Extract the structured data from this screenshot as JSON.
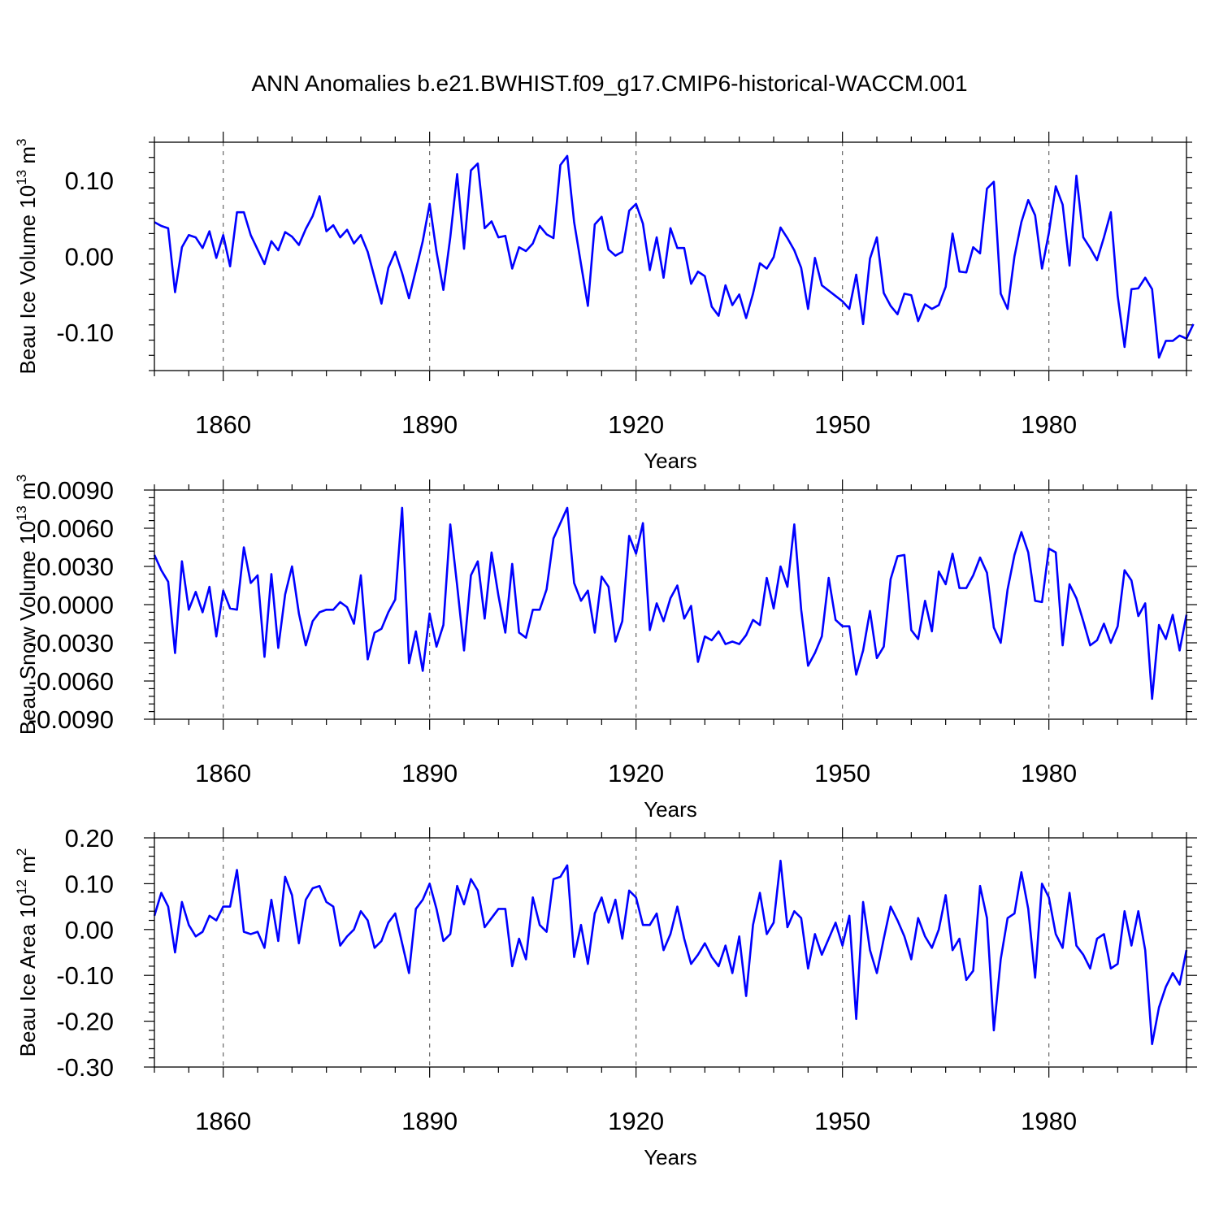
{
  "figure": {
    "title": "ANN Anomalies b.e21.BWHIST.f09_g17.CMIP6-historical-WACCM.001"
  },
  "chart_data": [
    {
      "type": "line",
      "name": "beau-ice-volume",
      "ylabel_main": "Beau Ice Volume 10",
      "ylabel_exp": "13",
      "ylabel_unit": " m",
      "ylabel_unit_exp": "3",
      "xlabel": "Years",
      "xlim": [
        1850,
        2000
      ],
      "ylim": [
        -0.15,
        0.15
      ],
      "xticks": [
        1860,
        1890,
        1920,
        1950,
        1980
      ],
      "xtick_labels": [
        "1860",
        "1890",
        "1920",
        "1950",
        "1980"
      ],
      "yticks": [
        -0.1,
        0.0,
        0.1
      ],
      "ytick_labels": [
        "-0.10",
        "0.00",
        "0.10"
      ],
      "x_start": 1850,
      "color": "#0000ff",
      "values": [
        0.045,
        0.04,
        0.037,
        -0.047,
        0.012,
        0.028,
        0.025,
        0.011,
        0.033,
        -0.002,
        0.028,
        -0.013,
        0.058,
        0.058,
        0.028,
        0.009,
        -0.01,
        0.02,
        0.008,
        0.032,
        0.026,
        0.015,
        0.036,
        0.053,
        0.079,
        0.033,
        0.041,
        0.025,
        0.035,
        0.017,
        0.028,
        0.006,
        -0.028,
        -0.062,
        -0.015,
        0.006,
        -0.022,
        -0.055,
        -0.018,
        0.02,
        0.069,
        0.006,
        -0.044,
        0.025,
        0.108,
        0.01,
        0.113,
        0.122,
        0.037,
        0.046,
        0.025,
        0.027,
        -0.016,
        0.012,
        0.007,
        0.017,
        0.04,
        0.029,
        0.024,
        0.12,
        0.132,
        0.045,
        -0.01,
        -0.065,
        0.042,
        0.052,
        0.009,
        0.001,
        0.006,
        0.06,
        0.069,
        0.043,
        -0.018,
        0.025,
        -0.028,
        0.037,
        0.011,
        0.011,
        -0.036,
        -0.02,
        -0.026,
        -0.066,
        -0.078,
        -0.038,
        -0.064,
        -0.05,
        -0.081,
        -0.049,
        -0.009,
        -0.016,
        -0.001,
        0.038,
        0.024,
        0.008,
        -0.015,
        -0.069,
        -0.002,
        -0.038,
        -0.045,
        -0.052,
        -0.059,
        -0.069,
        -0.024,
        -0.089,
        -0.003,
        0.025,
        -0.048,
        -0.065,
        -0.076,
        -0.049,
        -0.051,
        -0.085,
        -0.063,
        -0.069,
        -0.064,
        -0.04,
        0.03,
        -0.02,
        -0.021,
        0.012,
        0.004,
        0.089,
        0.098,
        -0.049,
        -0.069,
        0.0,
        0.045,
        0.074,
        0.054,
        -0.016,
        0.031,
        0.092,
        0.068,
        -0.012,
        0.106,
        0.025,
        0.011,
        -0.005,
        0.025,
        0.058,
        -0.052,
        -0.119,
        -0.043,
        -0.042,
        -0.028,
        -0.043,
        -0.133,
        -0.111,
        -0.111,
        -0.104,
        -0.108,
        -0.089
      ]
    },
    {
      "type": "line",
      "name": "beau-snow-volume",
      "ylabel_main": "Beau Snow Volume 10",
      "ylabel_exp": "13",
      "ylabel_unit": " m",
      "ylabel_unit_exp": "3",
      "xlabel": "Years",
      "xlim": [
        1850,
        2000
      ],
      "ylim": [
        -0.009,
        0.009
      ],
      "xticks": [
        1860,
        1890,
        1920,
        1950,
        1980
      ],
      "xtick_labels": [
        "1860",
        "1890",
        "1920",
        "1950",
        "1980"
      ],
      "yticks": [
        -0.009,
        -0.006,
        -0.003,
        0.0,
        0.003,
        0.006,
        0.009
      ],
      "ytick_labels": [
        "-0.0090",
        "-0.0060",
        "-0.0030",
        "0.0000",
        "0.0030",
        "0.0060",
        "0.0090"
      ],
      "x_start": 1850,
      "color": "#0000ff",
      "values": [
        0.0039,
        0.0027,
        0.0018,
        -0.0038,
        0.0034,
        -0.0004,
        0.001,
        -0.0006,
        0.0014,
        -0.0025,
        0.0011,
        -0.0003,
        -0.0004,
        0.0045,
        0.0017,
        0.0023,
        -0.0041,
        0.0024,
        -0.0034,
        0.0008,
        0.003,
        -0.0007,
        -0.0032,
        -0.0013,
        -0.0006,
        -0.0004,
        -0.0004,
        0.0002,
        -0.0002,
        -0.0015,
        0.0023,
        -0.0043,
        -0.0022,
        -0.0019,
        -0.0006,
        0.0004,
        0.0076,
        -0.0046,
        -0.0021,
        -0.0052,
        -0.0007,
        -0.0033,
        -0.0016,
        0.0063,
        0.0015,
        -0.0036,
        0.0023,
        0.0034,
        -0.0011,
        0.0041,
        0.0007,
        -0.0022,
        0.0032,
        -0.0022,
        -0.0026,
        -0.0004,
        -0.0004,
        0.0012,
        0.0052,
        0.0064,
        0.0076,
        0.0017,
        0.0003,
        0.0011,
        -0.0022,
        0.0022,
        0.0014,
        -0.0029,
        -0.0013,
        0.0054,
        0.004,
        0.0064,
        -0.002,
        0.0001,
        -0.0013,
        0.0005,
        0.0015,
        -0.0011,
        -0.0001,
        -0.0045,
        -0.0025,
        -0.0028,
        -0.0021,
        -0.0031,
        -0.0029,
        -0.0031,
        -0.0024,
        -0.0012,
        -0.0016,
        0.0021,
        -0.0003,
        0.003,
        0.0014,
        0.0063,
        -0.0004,
        -0.0048,
        -0.0038,
        -0.0025,
        0.0021,
        -0.0012,
        -0.0017,
        -0.0017,
        -0.0055,
        -0.0036,
        -0.0005,
        -0.0042,
        -0.0033,
        0.002,
        0.0038,
        0.0039,
        -0.002,
        -0.0027,
        0.0003,
        -0.0021,
        0.0026,
        0.0016,
        0.004,
        0.0013,
        0.0013,
        0.0023,
        0.0037,
        0.0025,
        -0.0018,
        -0.003,
        0.0012,
        0.0039,
        0.0057,
        0.0041,
        0.0003,
        0.0002,
        0.0044,
        0.0041,
        -0.0032,
        0.0016,
        0.0005,
        -0.0013,
        -0.0032,
        -0.0028,
        -0.0015,
        -0.003,
        -0.0017,
        0.0027,
        0.0019,
        -0.0009,
        0.0001,
        -0.0074,
        -0.0016,
        -0.0027,
        -0.0008,
        -0.0036,
        -0.0008
      ]
    },
    {
      "type": "line",
      "name": "beau-ice-area",
      "ylabel_main": "Beau Ice Area 10",
      "ylabel_exp": "12",
      "ylabel_unit": " m",
      "ylabel_unit_exp": "2",
      "xlabel": "Years",
      "xlim": [
        1850,
        2000
      ],
      "ylim": [
        -0.3,
        0.2
      ],
      "xticks": [
        1860,
        1890,
        1920,
        1950,
        1980
      ],
      "xtick_labels": [
        "1860",
        "1890",
        "1920",
        "1950",
        "1980"
      ],
      "yticks": [
        -0.3,
        -0.2,
        -0.1,
        0.0,
        0.1,
        0.2
      ],
      "ytick_labels": [
        "-0.30",
        "-0.20",
        "-0.10",
        "0.00",
        "0.10",
        "0.20"
      ],
      "x_start": 1850,
      "color": "#0000ff",
      "values": [
        0.03,
        0.08,
        0.05,
        -0.05,
        0.06,
        0.01,
        -0.015,
        -0.005,
        0.03,
        0.02,
        0.05,
        0.05,
        0.13,
        -0.005,
        -0.01,
        -0.005,
        -0.04,
        0.065,
        -0.025,
        0.115,
        0.075,
        -0.03,
        0.065,
        0.09,
        0.095,
        0.06,
        0.05,
        -0.035,
        -0.015,
        0.0,
        0.04,
        0.02,
        -0.04,
        -0.025,
        0.015,
        0.035,
        -0.03,
        -0.095,
        0.045,
        0.065,
        0.1,
        0.045,
        -0.025,
        -0.01,
        0.095,
        0.055,
        0.11,
        0.085,
        0.005,
        0.025,
        0.045,
        0.045,
        -0.08,
        -0.02,
        -0.065,
        0.07,
        0.01,
        -0.005,
        0.11,
        0.115,
        0.14,
        -0.06,
        0.01,
        -0.075,
        0.035,
        0.07,
        0.015,
        0.065,
        -0.02,
        0.085,
        0.07,
        0.01,
        0.01,
        0.035,
        -0.045,
        -0.01,
        0.05,
        -0.02,
        -0.075,
        -0.055,
        -0.03,
        -0.06,
        -0.08,
        -0.035,
        -0.095,
        -0.015,
        -0.145,
        0.01,
        0.08,
        -0.01,
        0.015,
        0.15,
        0.005,
        0.04,
        0.025,
        -0.085,
        -0.01,
        -0.055,
        -0.02,
        0.015,
        -0.035,
        0.03,
        -0.195,
        0.06,
        -0.045,
        -0.095,
        -0.02,
        0.05,
        0.02,
        -0.015,
        -0.065,
        0.025,
        -0.015,
        -0.04,
        0.0,
        0.075,
        -0.045,
        -0.02,
        -0.11,
        -0.09,
        0.095,
        0.025,
        -0.22,
        -0.065,
        0.025,
        0.035,
        0.125,
        0.045,
        -0.105,
        0.1,
        0.07,
        -0.01,
        -0.04,
        0.08,
        -0.035,
        -0.055,
        -0.085,
        -0.02,
        -0.01,
        -0.085,
        -0.075,
        0.04,
        -0.035,
        0.04,
        -0.045,
        -0.25,
        -0.17,
        -0.125,
        -0.095,
        -0.12,
        -0.045
      ]
    }
  ]
}
